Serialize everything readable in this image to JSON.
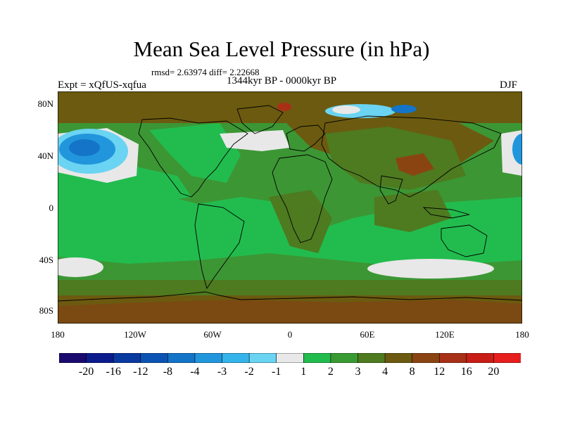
{
  "title": "Mean Sea Level Pressure (in hPa)",
  "stats": "rmsd= 2.63974 diff= 2.22668",
  "subtitle": "1344kyr BP - 0000kyr BP",
  "experiment": "Expt = xQfUS-xqfua",
  "season": "DJF",
  "map": {
    "lat_ticks": [
      "80N",
      "40N",
      "0",
      "40S",
      "80S"
    ],
    "lon_ticks": [
      "180",
      "120W",
      "60W",
      "0",
      "60E",
      "120E",
      "180"
    ]
  },
  "colorbar": {
    "labels": [
      "-20",
      "-16",
      "-12",
      "-8",
      "-4",
      "-3",
      "-2",
      "-1",
      "1",
      "2",
      "3",
      "4",
      "8",
      "12",
      "16",
      "20"
    ],
    "colors": [
      "#1a0a6e",
      "#0c1c8c",
      "#0a3aa0",
      "#0c54b4",
      "#1474c8",
      "#2296dc",
      "#34b4ea",
      "#6ad4f2",
      "#e8e8e8",
      "#22bc4e",
      "#3a9a32",
      "#4e7a20",
      "#6c5a10",
      "#8a4412",
      "#a83016",
      "#c81e16",
      "#e61e1e"
    ]
  },
  "colors": {
    "ocean_green": "#22bc4e",
    "land_green": "#3c9634",
    "olive": "#4e7a20",
    "brown": "#6c5a10",
    "low_blue": "#1474c8",
    "neutral": "#e8e8e8"
  }
}
